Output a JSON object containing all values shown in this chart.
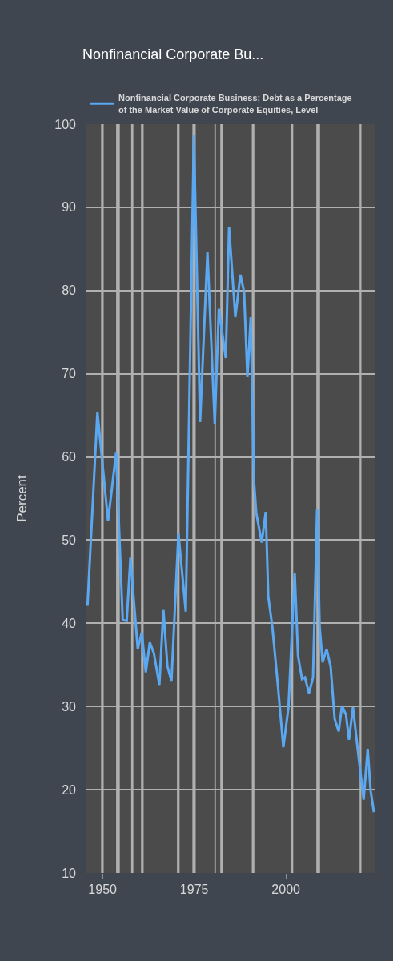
{
  "chart_data": {
    "type": "line",
    "title": "Nonfinancial Corporate Bu...",
    "ylabel": "Percent",
    "x": [
      1945.9,
      1948.6,
      1951.5,
      1953.7,
      1955.5,
      1956.6,
      1957.6,
      1959.6,
      1960.7,
      1961.8,
      1962.9,
      1964.0,
      1965.5,
      1966.6,
      1967.7,
      1968.8,
      1970.7,
      1972.7,
      1974.9,
      1976.6,
      1978.6,
      1980.6,
      1981.7,
      1983.6,
      1984.5,
      1986.2,
      1987.6,
      1988.6,
      1989.5,
      1990.4,
      1991.3,
      1991.9,
      1993.4,
      1994.5,
      1995.2,
      1996.3,
      1997.8,
      1999.3,
      2000.7,
      2002.4,
      2003.3,
      2004.4,
      2005.2,
      2006.3,
      2007.4,
      2008.5,
      2009.2,
      2010.0,
      2011.1,
      2012.2,
      2013.3,
      2014.4,
      2015.3,
      2016.4,
      2017.2,
      2018.3,
      2019.7,
      2021.2,
      2022.3,
      2023.1,
      2024.0
    ],
    "series": [
      {
        "name": "Nonfinancial Corporate Business; Debt as a Percentage of the Market Value of Corporate Equities, Level",
        "color": "#5aa8f2",
        "values": [
          42.1,
          65.4,
          52.3,
          60.5,
          40.4,
          40.3,
          47.9,
          36.9,
          38.9,
          34.1,
          37.7,
          36.4,
          32.6,
          41.6,
          34.8,
          33.1,
          50.8,
          41.4,
          98.7,
          64.2,
          84.6,
          63.9,
          77.8,
          71.9,
          87.6,
          76.8,
          81.9,
          79.8,
          69.6,
          76.8,
          57.1,
          53.3,
          49.7,
          53.4,
          43.2,
          39.6,
          32.6,
          25.1,
          29.9,
          46.1,
          36.1,
          33.3,
          33.5,
          31.6,
          33.5,
          53.7,
          39.6,
          35.3,
          36.9,
          34.8,
          28.5,
          27.0,
          30.1,
          29.0,
          26.0,
          29.9,
          24.4,
          18.8,
          24.9,
          19.9,
          17.3
        ]
      }
    ],
    "xlim": [
      1945.6,
      2024.2
    ],
    "xticks": [
      1950,
      1975,
      2000
    ],
    "ylim": [
      10,
      100
    ],
    "yticks": [
      10,
      20,
      30,
      40,
      50,
      60,
      70,
      80,
      90,
      100
    ],
    "bands": [
      {
        "axis": "x",
        "from": 1949.6,
        "to": 1950.3,
        "color": "#b0b0b0"
      },
      {
        "axis": "x",
        "from": 1953.7,
        "to": 1954.7,
        "color": "#b0b0b0"
      },
      {
        "axis": "x",
        "from": 1957.8,
        "to": 1958.4,
        "color": "#b0b0b0"
      },
      {
        "axis": "x",
        "from": 1960.5,
        "to": 1961.2,
        "color": "#b0b0b0"
      },
      {
        "axis": "x",
        "from": 1970.3,
        "to": 1971.0,
        "color": "#b0b0b0"
      },
      {
        "axis": "x",
        "from": 1974.5,
        "to": 1975.4,
        "color": "#b0b0b0"
      },
      {
        "axis": "x",
        "from": 1980.5,
        "to": 1980.9,
        "color": "#b0b0b0"
      },
      {
        "axis": "x",
        "from": 1982.1,
        "to": 1982.9,
        "color": "#b0b0b0"
      },
      {
        "axis": "x",
        "from": 1990.7,
        "to": 1991.4,
        "color": "#b0b0b0"
      },
      {
        "axis": "x",
        "from": 2001.4,
        "to": 2002.0,
        "color": "#b0b0b0"
      },
      {
        "axis": "x",
        "from": 2008.3,
        "to": 2009.3,
        "color": "#b0b0b0"
      },
      {
        "axis": "x",
        "from": 2020.1,
        "to": 2020.6,
        "color": "#b0b0b0"
      }
    ],
    "grid": "y",
    "legend": "top",
    "marker": "none",
    "line_style": "solid"
  }
}
